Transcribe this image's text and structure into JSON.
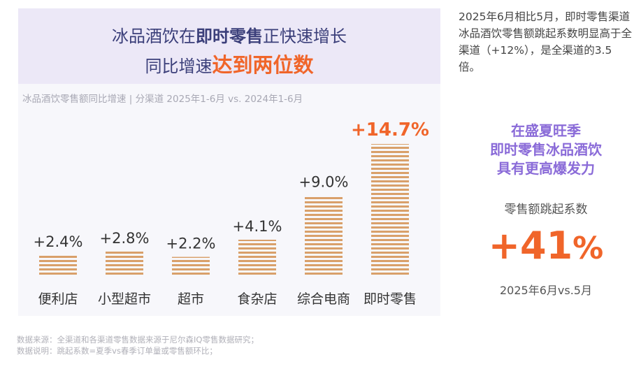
{
  "header": {
    "line1_a": "冰品酒饮在",
    "line1_b": "即时零售",
    "line1_c": "正快速增长",
    "line2_a": "同比增速",
    "line2_b": "达到两位数"
  },
  "subtitle": "冰品酒饮零售额同比增速 | 分渠道 2025年1-6月 vs. 2024年1-6月",
  "chart_data": {
    "type": "bar",
    "title": "冰品酒饮零售额同比增速 | 分渠道 2025年1-6月 vs. 2024年1-6月",
    "categories": [
      "便利店",
      "小型超市",
      "超市",
      "食杂店",
      "综合电商",
      "即时零售"
    ],
    "values": [
      2.4,
      2.8,
      2.2,
      4.1,
      9.0,
      14.7
    ],
    "value_labels": [
      "+2.4%",
      "+2.8%",
      "+2.2%",
      "+4.1%",
      "+9.0%",
      "+14.7%"
    ],
    "highlight_index": 5,
    "xlabel": "",
    "ylabel": "",
    "ylim": [
      0,
      14.7
    ],
    "bar_color": "#d9a06a",
    "highlight_color": "#f0652a"
  },
  "side": {
    "text": "2025年6月相比5月，即时零售渠道冰品酒饮零售额跳起系数明显高于全渠道（+12%），是全渠道的3.5倍。",
    "heading_1": "在盛夏旺季",
    "heading_2": "即时零售冰品酒饮",
    "heading_3": "具有更高爆发力",
    "coef_label": "零售额跳起系数",
    "coef_value": "+41",
    "coef_unit": "%",
    "coef_period": "2025年6月vs.5月"
  },
  "footnote": {
    "line1": "数据来源：全渠道和各渠道零售数据来源于尼尔森IQ零售数据研究；",
    "line2": "数据说明：跳起系数=夏季vs春季订单量或零售额环比；"
  }
}
